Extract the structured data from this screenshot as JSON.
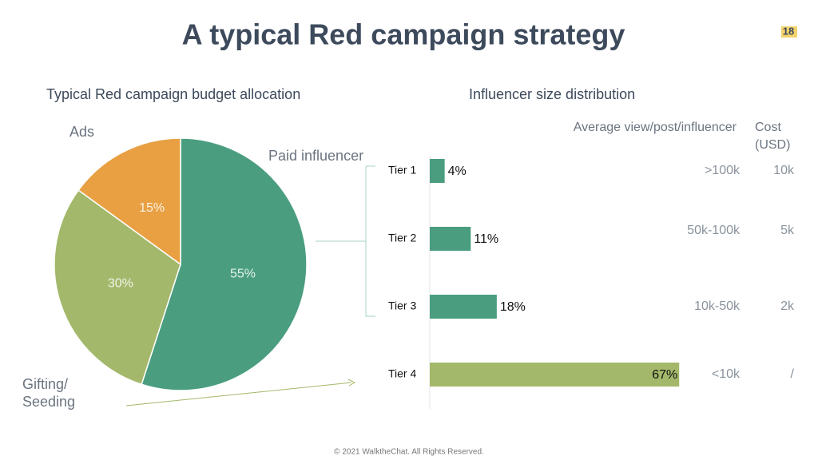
{
  "title": "A typical Red campaign strategy",
  "page_number": "18",
  "footer": "© 2021 WalktheChat. All Rights Reserved.",
  "chart_data": [
    {
      "type": "pie",
      "title": "Typical Red campaign budget allocation",
      "categories": [
        "Paid influencer",
        "Gifting/ Seeding",
        "Ads"
      ],
      "values": [
        55,
        30,
        15
      ],
      "value_labels": [
        "55%",
        "30%",
        "15%"
      ],
      "colors": [
        "#4a9e7f",
        "#a3b86a",
        "#e8a043"
      ]
    },
    {
      "type": "hbar",
      "title": "Influencer size distribution",
      "categories": [
        "Tier 1",
        "Tier 2",
        "Tier 3",
        "Tier 4"
      ],
      "values": [
        4,
        11,
        18,
        67
      ],
      "value_labels": [
        "4%",
        "11%",
        "18%",
        "67%"
      ],
      "colors": [
        "#4a9e7f",
        "#4a9e7f",
        "#4a9e7f",
        "#a3b86a"
      ],
      "columns": [
        "Average view/post/influencer",
        "Cost (USD)"
      ],
      "rows": [
        [
          ">100k",
          "10k"
        ],
        [
          "50k-100k",
          "5k"
        ],
        [
          "10k-50k",
          "2k"
        ],
        [
          "<10k",
          "/"
        ]
      ]
    }
  ]
}
